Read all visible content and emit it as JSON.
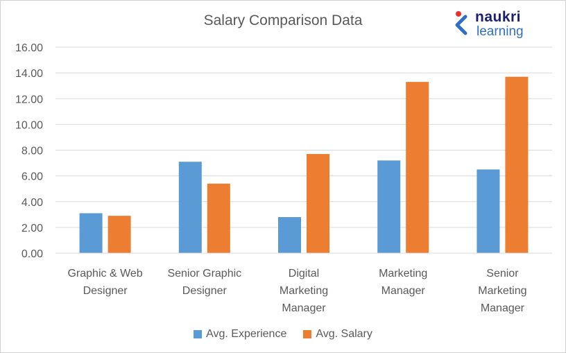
{
  "logo": {
    "line1": "naukri",
    "line2": "learning",
    "colors": {
      "navy": "#1a1f71",
      "blue": "#2f6fc6",
      "red": "#e8312f"
    }
  },
  "chart_data": {
    "type": "bar",
    "title": "Salary Comparison Data",
    "categories": [
      [
        "Graphic & Web",
        "Designer"
      ],
      [
        "Senior Graphic",
        "Designer"
      ],
      [
        "Digital",
        "Marketing",
        "Manager"
      ],
      [
        "Marketing",
        "Manager"
      ],
      [
        "Senior",
        "Marketing",
        "Manager"
      ]
    ],
    "series": [
      {
        "name": "Avg. Experience",
        "color": "#5b9bd5",
        "values": [
          3.1,
          7.1,
          2.8,
          7.2,
          6.5
        ]
      },
      {
        "name": "Avg. Salary",
        "color": "#ed7d31",
        "values": [
          2.9,
          5.4,
          7.7,
          13.3,
          13.7
        ]
      }
    ],
    "xlabel": "",
    "ylabel": "",
    "ylim": [
      0,
      16
    ],
    "yticks": [
      "0.00",
      "2.00",
      "4.00",
      "6.00",
      "8.00",
      "10.00",
      "12.00",
      "14.00",
      "16.00"
    ],
    "grid": true,
    "legend": "bottom"
  }
}
